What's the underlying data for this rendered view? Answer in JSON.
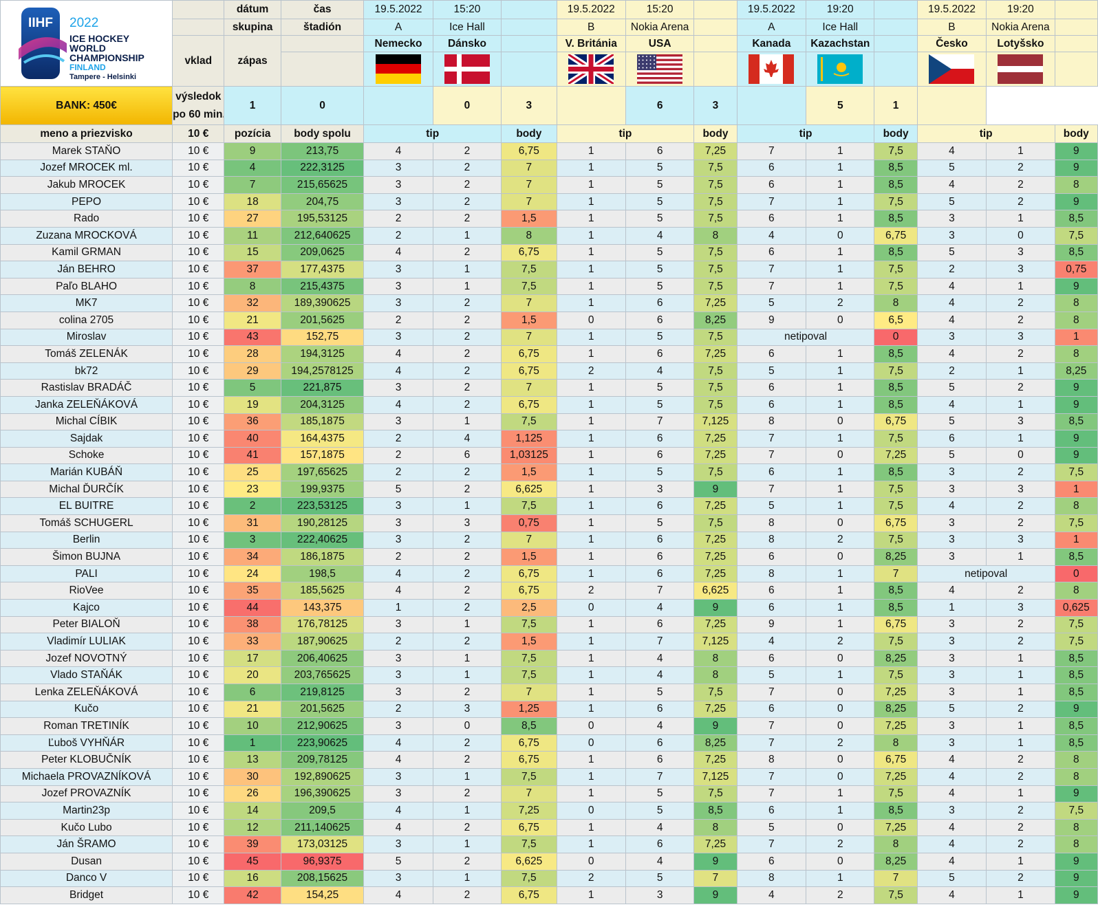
{
  "header": {
    "logo": {
      "top": "IIHF",
      "year": "2022",
      "l1": "ICE HOCKEY",
      "l2": "WORLD",
      "l3": "CHAMPIONSHIP",
      "country": "FINLAND",
      "cities": "Tampere - Helsinki"
    },
    "bank": "BANK: 450€",
    "datum": "dátum",
    "cas": "čas",
    "skupina": "skupina",
    "stadion": "štadión",
    "vklad": "vklad",
    "zapas": "zápas",
    "vysledok1": "výsledok",
    "vysledok2": "po 60 min.",
    "meno": "meno a priezvisko",
    "vklad_amount": "10 €",
    "pozicia": "pozícia",
    "body_spolu": "body spolu",
    "tip": "tip",
    "body": "body"
  },
  "matches": [
    {
      "date": "19.5.2022",
      "time": "15:20",
      "group": "A",
      "venue": "Ice Hall",
      "home": "Nemecko",
      "away": "Dánsko",
      "home_flag": "germany-flag",
      "away_flag": "denmark-flag",
      "home_score": "1",
      "away_score": "0",
      "theme": "cyan"
    },
    {
      "date": "19.5.2022",
      "time": "15:20",
      "group": "B",
      "venue": "Nokia Arena",
      "home": "V. Británia",
      "away": "USA",
      "home_flag": "uk-flag",
      "away_flag": "usa-flag",
      "home_score": "0",
      "away_score": "3",
      "theme": "yellow"
    },
    {
      "date": "19.5.2022",
      "time": "19:20",
      "group": "A",
      "venue": "Ice Hall",
      "home": "Kanada",
      "away": "Kazachstan",
      "home_flag": "canada-flag",
      "away_flag": "kazakhstan-flag",
      "home_score": "6",
      "away_score": "3",
      "theme": "cyan"
    },
    {
      "date": "19.5.2022",
      "time": "19:20",
      "group": "B",
      "venue": "Nokia Arena",
      "home": "Česko",
      "away": "Lotyšsko",
      "home_flag": "czech-flag",
      "away_flag": "latvia-flag",
      "home_score": "5",
      "away_score": "1",
      "theme": "yellow"
    }
  ],
  "colors": {
    "green": "#63be7b",
    "yellow": "#ffeb84",
    "red": "#f8696b",
    "team": "#1f3a93"
  },
  "rows": [
    {
      "name": "Marek STAŇO",
      "vklad": "10 €",
      "pos": "9",
      "total": "213,75",
      "tips": [
        [
          "4",
          "2",
          "6,75"
        ],
        [
          "1",
          "6",
          "7,25"
        ],
        [
          "7",
          "1",
          "7,5"
        ],
        [
          "4",
          "1",
          "9"
        ]
      ]
    },
    {
      "name": "Jozef MROCEK ml.",
      "vklad": "10 €",
      "pos": "4",
      "total": "222,3125",
      "tips": [
        [
          "3",
          "2",
          "7"
        ],
        [
          "1",
          "5",
          "7,5"
        ],
        [
          "6",
          "1",
          "8,5"
        ],
        [
          "5",
          "2",
          "9"
        ]
      ]
    },
    {
      "name": "Jakub MROCEK",
      "vklad": "10 €",
      "pos": "7",
      "total": "215,65625",
      "tips": [
        [
          "3",
          "2",
          "7"
        ],
        [
          "1",
          "5",
          "7,5"
        ],
        [
          "6",
          "1",
          "8,5"
        ],
        [
          "4",
          "2",
          "8"
        ]
      ]
    },
    {
      "name": "PEPO",
      "vklad": "10 €",
      "pos": "18",
      "total": "204,75",
      "tips": [
        [
          "3",
          "2",
          "7"
        ],
        [
          "1",
          "5",
          "7,5"
        ],
        [
          "7",
          "1",
          "7,5"
        ],
        [
          "5",
          "2",
          "9"
        ]
      ]
    },
    {
      "name": "Rado",
      "vklad": "10 €",
      "pos": "27",
      "total": "195,53125",
      "tips": [
        [
          "2",
          "2",
          "1,5"
        ],
        [
          "1",
          "5",
          "7,5"
        ],
        [
          "6",
          "1",
          "8,5"
        ],
        [
          "3",
          "1",
          "8,5"
        ]
      ]
    },
    {
      "name": "Zuzana MROCKOVÁ",
      "vklad": "10 €",
      "pos": "11",
      "total": "212,640625",
      "tips": [
        [
          "2",
          "1",
          "8"
        ],
        [
          "1",
          "4",
          "8"
        ],
        [
          "4",
          "0",
          "6,75"
        ],
        [
          "3",
          "0",
          "7,5"
        ]
      ]
    },
    {
      "name": "Kamil GRMAN",
      "vklad": "10 €",
      "pos": "15",
      "total": "209,0625",
      "tips": [
        [
          "4",
          "2",
          "6,75"
        ],
        [
          "1",
          "5",
          "7,5"
        ],
        [
          "6",
          "1",
          "8,5"
        ],
        [
          "5",
          "3",
          "8,5"
        ]
      ]
    },
    {
      "name": "Ján BEHRO",
      "vklad": "10 €",
      "pos": "37",
      "total": "177,4375",
      "tips": [
        [
          "3",
          "1",
          "7,5"
        ],
        [
          "1",
          "5",
          "7,5"
        ],
        [
          "7",
          "1",
          "7,5"
        ],
        [
          "2",
          "3",
          "0,75"
        ]
      ]
    },
    {
      "name": "Paľo BLAHO",
      "vklad": "10 €",
      "pos": "8",
      "total": "215,4375",
      "tips": [
        [
          "3",
          "1",
          "7,5"
        ],
        [
          "1",
          "5",
          "7,5"
        ],
        [
          "7",
          "1",
          "7,5"
        ],
        [
          "4",
          "1",
          "9"
        ]
      ]
    },
    {
      "name": "MK7",
      "vklad": "10 €",
      "pos": "32",
      "total": "189,390625",
      "tips": [
        [
          "3",
          "2",
          "7"
        ],
        [
          "1",
          "6",
          "7,25"
        ],
        [
          "5",
          "2",
          "8"
        ],
        [
          "4",
          "2",
          "8"
        ]
      ]
    },
    {
      "name": "colina 2705",
      "vklad": "10 €",
      "pos": "21",
      "total": "201,5625",
      "tips": [
        [
          "2",
          "2",
          "1,5"
        ],
        [
          "0",
          "6",
          "8,25"
        ],
        [
          "9",
          "0",
          "6,5"
        ],
        [
          "4",
          "2",
          "8"
        ]
      ]
    },
    {
      "name": "Miroslav",
      "vklad": "10 €",
      "pos": "43",
      "total": "152,75",
      "tips": [
        [
          "3",
          "2",
          "7"
        ],
        [
          "1",
          "5",
          "7,5"
        ],
        [
          "netipoval",
          "",
          "0"
        ],
        [
          "3",
          "3",
          "1"
        ]
      ]
    },
    {
      "name": "Tomáš ZELENÁK",
      "vklad": "10 €",
      "pos": "28",
      "total": "194,3125",
      "tips": [
        [
          "4",
          "2",
          "6,75"
        ],
        [
          "1",
          "6",
          "7,25"
        ],
        [
          "6",
          "1",
          "8,5"
        ],
        [
          "4",
          "2",
          "8"
        ]
      ]
    },
    {
      "name": "bk72",
      "vklad": "10 €",
      "pos": "29",
      "total": "194,2578125",
      "tips": [
        [
          "4",
          "2",
          "6,75"
        ],
        [
          "2",
          "4",
          "7,5"
        ],
        [
          "5",
          "1",
          "7,5"
        ],
        [
          "2",
          "1",
          "8,25"
        ]
      ]
    },
    {
      "name": "Rastislav BRADÁČ",
      "vklad": "10 €",
      "pos": "5",
      "total": "221,875",
      "tips": [
        [
          "3",
          "2",
          "7"
        ],
        [
          "1",
          "5",
          "7,5"
        ],
        [
          "6",
          "1",
          "8,5"
        ],
        [
          "5",
          "2",
          "9"
        ]
      ]
    },
    {
      "name": "Janka ZELEŇÁKOVÁ",
      "vklad": "10 €",
      "pos": "19",
      "total": "204,3125",
      "tips": [
        [
          "4",
          "2",
          "6,75"
        ],
        [
          "1",
          "5",
          "7,5"
        ],
        [
          "6",
          "1",
          "8,5"
        ],
        [
          "4",
          "1",
          "9"
        ]
      ]
    },
    {
      "name": "Michal CÍBIK",
      "vklad": "10 €",
      "pos": "36",
      "total": "185,1875",
      "tips": [
        [
          "3",
          "1",
          "7,5"
        ],
        [
          "1",
          "7",
          "7,125"
        ],
        [
          "8",
          "0",
          "6,75"
        ],
        [
          "5",
          "3",
          "8,5"
        ]
      ]
    },
    {
      "name": "Sajdak",
      "vklad": "10 €",
      "pos": "40",
      "total": "164,4375",
      "tips": [
        [
          "2",
          "4",
          "1,125"
        ],
        [
          "1",
          "6",
          "7,25"
        ],
        [
          "7",
          "1",
          "7,5"
        ],
        [
          "6",
          "1",
          "9"
        ]
      ]
    },
    {
      "name": "Schoke",
      "vklad": "10 €",
      "pos": "41",
      "total": "157,1875",
      "tips": [
        [
          "2",
          "6",
          "1,03125"
        ],
        [
          "1",
          "6",
          "7,25"
        ],
        [
          "7",
          "0",
          "7,25"
        ],
        [
          "5",
          "0",
          "9"
        ]
      ]
    },
    {
      "name": "Marián KUBÁŇ",
      "vklad": "10 €",
      "pos": "25",
      "total": "197,65625",
      "tips": [
        [
          "2",
          "2",
          "1,5"
        ],
        [
          "1",
          "5",
          "7,5"
        ],
        [
          "6",
          "1",
          "8,5"
        ],
        [
          "3",
          "2",
          "7,5"
        ]
      ]
    },
    {
      "name": "Michal ĎURČÍK",
      "vklad": "10 €",
      "pos": "23",
      "total": "199,9375",
      "tips": [
        [
          "5",
          "2",
          "6,625"
        ],
        [
          "1",
          "3",
          "9"
        ],
        [
          "7",
          "1",
          "7,5"
        ],
        [
          "3",
          "3",
          "1"
        ]
      ]
    },
    {
      "name": "EL BUITRE",
      "vklad": "10 €",
      "pos": "2",
      "total": "223,53125",
      "tips": [
        [
          "3",
          "1",
          "7,5"
        ],
        [
          "1",
          "6",
          "7,25"
        ],
        [
          "5",
          "1",
          "7,5"
        ],
        [
          "4",
          "2",
          "8"
        ]
      ]
    },
    {
      "name": "Tomáš SCHUGERL",
      "vklad": "10 €",
      "pos": "31",
      "total": "190,28125",
      "tips": [
        [
          "3",
          "3",
          "0,75"
        ],
        [
          "1",
          "5",
          "7,5"
        ],
        [
          "8",
          "0",
          "6,75"
        ],
        [
          "3",
          "2",
          "7,5"
        ]
      ]
    },
    {
      "name": "Berlin",
      "vklad": "10 €",
      "pos": "3",
      "total": "222,40625",
      "tips": [
        [
          "3",
          "2",
          "7"
        ],
        [
          "1",
          "6",
          "7,25"
        ],
        [
          "8",
          "2",
          "7,5"
        ],
        [
          "3",
          "3",
          "1"
        ]
      ]
    },
    {
      "name": "Šimon BUJNA",
      "vklad": "10 €",
      "pos": "34",
      "total": "186,1875",
      "tips": [
        [
          "2",
          "2",
          "1,5"
        ],
        [
          "1",
          "6",
          "7,25"
        ],
        [
          "6",
          "0",
          "8,25"
        ],
        [
          "3",
          "1",
          "8,5"
        ]
      ]
    },
    {
      "name": "PALI",
      "vklad": "10 €",
      "pos": "24",
      "total": "198,5",
      "tips": [
        [
          "4",
          "2",
          "6,75"
        ],
        [
          "1",
          "6",
          "7,25"
        ],
        [
          "8",
          "1",
          "7"
        ],
        [
          "netipoval",
          "",
          "0"
        ]
      ]
    },
    {
      "name": "RioVee",
      "vklad": "10 €",
      "pos": "35",
      "total": "185,5625",
      "tips": [
        [
          "4",
          "2",
          "6,75"
        ],
        [
          "2",
          "7",
          "6,625"
        ],
        [
          "6",
          "1",
          "8,5"
        ],
        [
          "4",
          "2",
          "8"
        ]
      ]
    },
    {
      "name": "Kajco",
      "vklad": "10 €",
      "pos": "44",
      "total": "143,375",
      "tips": [
        [
          "1",
          "2",
          "2,5"
        ],
        [
          "0",
          "4",
          "9"
        ],
        [
          "6",
          "1",
          "8,5"
        ],
        [
          "1",
          "3",
          "0,625"
        ]
      ]
    },
    {
      "name": "Peter BIALOŇ",
      "vklad": "10 €",
      "pos": "38",
      "total": "176,78125",
      "tips": [
        [
          "3",
          "1",
          "7,5"
        ],
        [
          "1",
          "6",
          "7,25"
        ],
        [
          "9",
          "1",
          "6,75"
        ],
        [
          "3",
          "2",
          "7,5"
        ]
      ]
    },
    {
      "name": "Vladimír LULIAK",
      "vklad": "10 €",
      "pos": "33",
      "total": "187,90625",
      "tips": [
        [
          "2",
          "2",
          "1,5"
        ],
        [
          "1",
          "7",
          "7,125"
        ],
        [
          "4",
          "2",
          "7,5"
        ],
        [
          "3",
          "2",
          "7,5"
        ]
      ]
    },
    {
      "name": "Jozef NOVOTNÝ",
      "vklad": "10 €",
      "pos": "17",
      "total": "206,40625",
      "tips": [
        [
          "3",
          "1",
          "7,5"
        ],
        [
          "1",
          "4",
          "8"
        ],
        [
          "6",
          "0",
          "8,25"
        ],
        [
          "3",
          "1",
          "8,5"
        ]
      ]
    },
    {
      "name": "Vlado STAŇÁK",
      "vklad": "10 €",
      "pos": "20",
      "total": "203,765625",
      "tips": [
        [
          "3",
          "1",
          "7,5"
        ],
        [
          "1",
          "4",
          "8"
        ],
        [
          "5",
          "1",
          "7,5"
        ],
        [
          "3",
          "1",
          "8,5"
        ]
      ]
    },
    {
      "name": "Lenka ZELEŇÁKOVÁ",
      "vklad": "10 €",
      "pos": "6",
      "total": "219,8125",
      "tips": [
        [
          "3",
          "2",
          "7"
        ],
        [
          "1",
          "5",
          "7,5"
        ],
        [
          "7",
          "0",
          "7,25"
        ],
        [
          "3",
          "1",
          "8,5"
        ]
      ]
    },
    {
      "name": "Kučo",
      "vklad": "10 €",
      "pos": "21",
      "total": "201,5625",
      "tips": [
        [
          "2",
          "3",
          "1,25"
        ],
        [
          "1",
          "6",
          "7,25"
        ],
        [
          "6",
          "0",
          "8,25"
        ],
        [
          "5",
          "2",
          "9"
        ]
      ]
    },
    {
      "name": "Roman TRETINÍK",
      "vklad": "10 €",
      "pos": "10",
      "total": "212,90625",
      "tips": [
        [
          "3",
          "0",
          "8,5"
        ],
        [
          "0",
          "4",
          "9"
        ],
        [
          "7",
          "0",
          "7,25"
        ],
        [
          "3",
          "1",
          "8,5"
        ]
      ]
    },
    {
      "name": "Ľuboš VYHŇÁR",
      "vklad": "10 €",
      "pos": "1",
      "total": "223,90625",
      "tips": [
        [
          "4",
          "2",
          "6,75"
        ],
        [
          "0",
          "6",
          "8,25"
        ],
        [
          "7",
          "2",
          "8"
        ],
        [
          "3",
          "1",
          "8,5"
        ]
      ]
    },
    {
      "name": "Peter KLOBUČNÍK",
      "vklad": "10 €",
      "pos": "13",
      "total": "209,78125",
      "tips": [
        [
          "4",
          "2",
          "6,75"
        ],
        [
          "1",
          "6",
          "7,25"
        ],
        [
          "8",
          "0",
          "6,75"
        ],
        [
          "4",
          "2",
          "8"
        ]
      ]
    },
    {
      "name": "Michaela PROVAZNÍKOVÁ",
      "vklad": "10 €",
      "pos": "30",
      "total": "192,890625",
      "tips": [
        [
          "3",
          "1",
          "7,5"
        ],
        [
          "1",
          "7",
          "7,125"
        ],
        [
          "7",
          "0",
          "7,25"
        ],
        [
          "4",
          "2",
          "8"
        ]
      ]
    },
    {
      "name": "Jozef PROVAZNÍK",
      "vklad": "10 €",
      "pos": "26",
      "total": "196,390625",
      "tips": [
        [
          "3",
          "2",
          "7"
        ],
        [
          "1",
          "5",
          "7,5"
        ],
        [
          "7",
          "1",
          "7,5"
        ],
        [
          "4",
          "1",
          "9"
        ]
      ]
    },
    {
      "name": "Martin23p",
      "vklad": "10 €",
      "pos": "14",
      "total": "209,5",
      "tips": [
        [
          "4",
          "1",
          "7,25"
        ],
        [
          "0",
          "5",
          "8,5"
        ],
        [
          "6",
          "1",
          "8,5"
        ],
        [
          "3",
          "2",
          "7,5"
        ]
      ]
    },
    {
      "name": "Kučo Lubo",
      "vklad": "10 €",
      "pos": "12",
      "total": "211,140625",
      "tips": [
        [
          "4",
          "2",
          "6,75"
        ],
        [
          "1",
          "4",
          "8"
        ],
        [
          "5",
          "0",
          "7,25"
        ],
        [
          "4",
          "2",
          "8"
        ]
      ]
    },
    {
      "name": "Ján ŠRAMO",
      "vklad": "10 €",
      "pos": "39",
      "total": "173,03125",
      "tips": [
        [
          "3",
          "1",
          "7,5"
        ],
        [
          "1",
          "6",
          "7,25"
        ],
        [
          "7",
          "2",
          "8"
        ],
        [
          "4",
          "2",
          "8"
        ]
      ]
    },
    {
      "name": "Dusan",
      "vklad": "10 €",
      "pos": "45",
      "total": "96,9375",
      "tips": [
        [
          "5",
          "2",
          "6,625"
        ],
        [
          "0",
          "4",
          "9"
        ],
        [
          "6",
          "0",
          "8,25"
        ],
        [
          "4",
          "1",
          "9"
        ]
      ]
    },
    {
      "name": "Danco V",
      "vklad": "10 €",
      "pos": "16",
      "total": "208,15625",
      "tips": [
        [
          "3",
          "1",
          "7,5"
        ],
        [
          "2",
          "5",
          "7"
        ],
        [
          "8",
          "1",
          "7"
        ],
        [
          "5",
          "2",
          "9"
        ]
      ]
    },
    {
      "name": "Bridget",
      "vklad": "10 €",
      "pos": "42",
      "total": "154,25",
      "tips": [
        [
          "4",
          "2",
          "6,75"
        ],
        [
          "1",
          "3",
          "9"
        ],
        [
          "4",
          "2",
          "7,5"
        ],
        [
          "4",
          "1",
          "9"
        ]
      ]
    }
  ]
}
